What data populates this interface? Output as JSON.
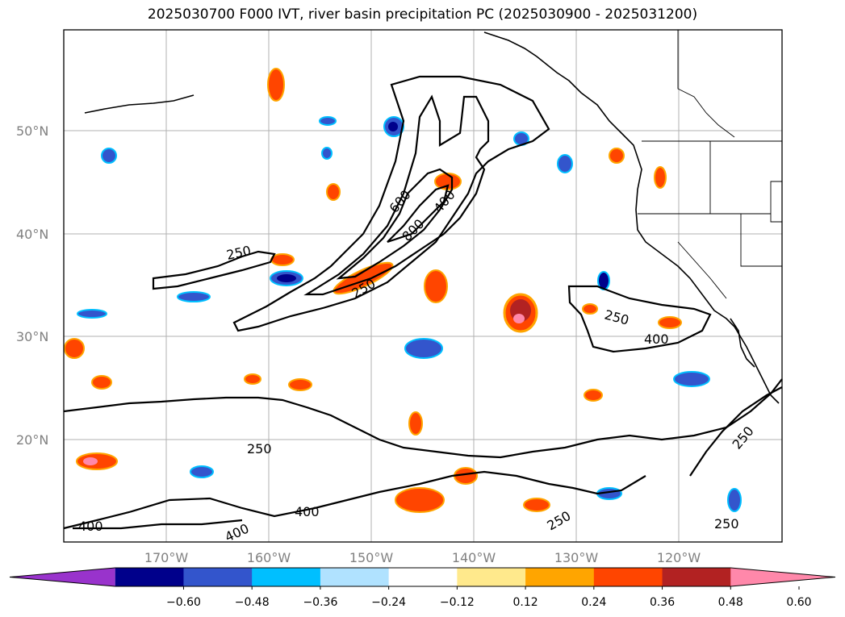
{
  "title": "2025030700 F000 IVT, river basin precipitation PC (2025030900 - 2025031200)",
  "map": {
    "lat_ticks": [
      "50°N",
      "40°N",
      "30°N",
      "20°N"
    ],
    "lon_ticks": [
      "170°W",
      "160°W",
      "150°W",
      "140°W",
      "130°W",
      "120°W"
    ],
    "ivt_contour_labels": [
      "600",
      "800",
      "400",
      "250",
      "250",
      "250",
      "400",
      "250",
      "400",
      "400",
      "400",
      "250",
      "250",
      "250"
    ],
    "gridlines": true
  },
  "colorbar": {
    "tick_labels": [
      "−0.60",
      "−0.48",
      "−0.36",
      "−0.24",
      "−0.12",
      "0.12",
      "0.24",
      "0.36",
      "0.48",
      "0.60"
    ],
    "colors": [
      "#9933cc",
      "#00008b",
      "#3355cc",
      "#00bfff",
      "#b0e2ff",
      "#ffffff",
      "#ffe98c",
      "#ffa500",
      "#ff4500",
      "#b22222",
      "#ff88aa"
    ],
    "extend": "both"
  },
  "chart_data": {
    "type": "map",
    "title": "2025030700 F000 IVT, river basin precipitation PC (2025030900 - 2025031200)",
    "extent": {
      "lon": [
        -180,
        -110
      ],
      "lat": [
        10,
        60
      ]
    },
    "contour_levels_ivt": [
      250,
      400,
      600,
      800
    ],
    "color_levels": [
      -0.6,
      -0.48,
      -0.36,
      -0.24,
      -0.12,
      0.12,
      0.24,
      0.36,
      0.48,
      0.6
    ]
  }
}
